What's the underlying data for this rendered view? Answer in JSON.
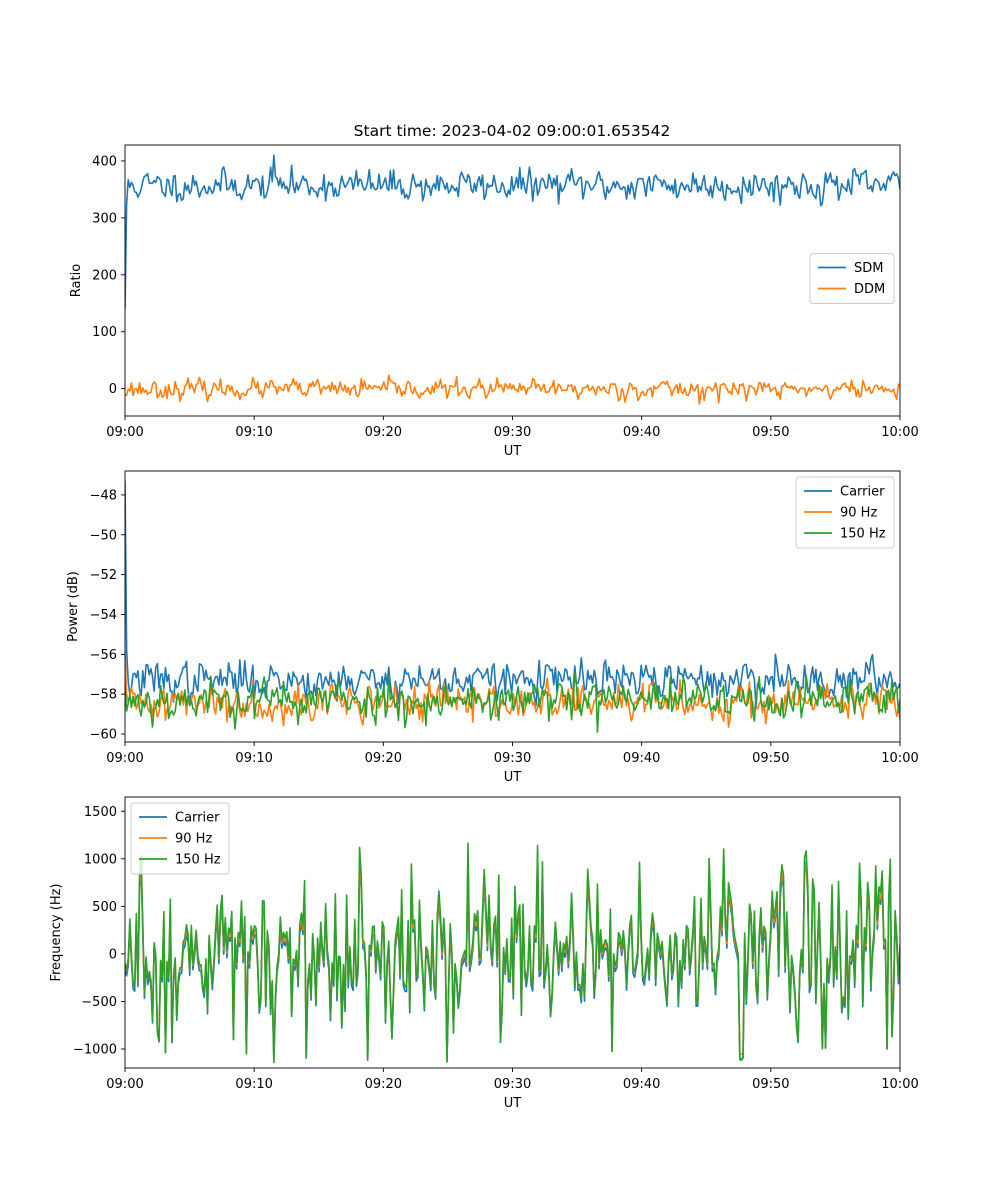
{
  "figure": {
    "title": "Start time: 2023-04-02 09:00:01.653542"
  },
  "colors": {
    "c0": "#1f77b4",
    "c1": "#ff7f0e",
    "c2": "#2ca02c"
  },
  "chart_data": [
    {
      "type": "line",
      "title": "Start time: 2023-04-02 09:00:01.653542",
      "xlabel": "UT",
      "ylabel": "Ratio",
      "xlim": [
        "09:00",
        "10:00"
      ],
      "xticks": [
        "09:00",
        "09:10",
        "09:20",
        "09:30",
        "09:40",
        "09:50",
        "10:00"
      ],
      "ylim": [
        -48,
        428
      ],
      "yticks": [
        0,
        100,
        200,
        300,
        400
      ],
      "yticklabels": [
        "0",
        "100",
        "200",
        "300",
        "400"
      ],
      "legend": "center-right",
      "series": [
        {
          "name": "SDM",
          "color": "#1f77b4",
          "start": 140,
          "mean": 357,
          "amp": 13,
          "seed": 11,
          "spikes": [
            [
              11.5,
              410
            ]
          ]
        },
        {
          "name": "DDM",
          "color": "#ff7f0e",
          "mean": -1,
          "amp": 8,
          "seed": 23,
          "spikes": [
            [
              44.5,
              -27
            ]
          ]
        }
      ]
    },
    {
      "type": "line",
      "title": "",
      "xlabel": "UT",
      "ylabel": "Power (dB)",
      "xlim": [
        "09:00",
        "10:00"
      ],
      "xticks": [
        "09:00",
        "09:10",
        "09:20",
        "09:30",
        "09:40",
        "09:50",
        "10:00"
      ],
      "ylim": [
        -60.4,
        -46.8
      ],
      "yticks": [
        -60,
        -58,
        -56,
        -54,
        -52,
        -50,
        -48
      ],
      "yticklabels": [
        "−60",
        "−58",
        "−56",
        "−54",
        "−52",
        "−50",
        "−48"
      ],
      "legend": "top-right",
      "series": [
        {
          "name": "Carrier",
          "color": "#1f77b4",
          "start": -47.3,
          "mean": -57.3,
          "amp": 0.45,
          "seed": 37,
          "spikes": [
            [
              50.3,
              -56.0
            ]
          ]
        },
        {
          "name": "90 Hz",
          "color": "#ff7f0e",
          "start": -55.8,
          "mean": -58.4,
          "amp": 0.45,
          "seed": 41,
          "spikes": []
        },
        {
          "name": "150 Hz",
          "color": "#2ca02c",
          "mean": -58.3,
          "amp": 0.5,
          "seed": 53,
          "spikes": [
            [
              36.6,
              -59.9
            ]
          ]
        }
      ]
    },
    {
      "type": "line",
      "title": "",
      "xlabel": "UT",
      "ylabel": "Frequency (Hz)",
      "xlim": [
        "09:00",
        "10:00"
      ],
      "xticks": [
        "09:00",
        "09:10",
        "09:20",
        "09:30",
        "09:40",
        "09:50",
        "10:00"
      ],
      "ylim": [
        -1200,
        1650
      ],
      "yticks": [
        -1000,
        -500,
        0,
        500,
        1000,
        1500
      ],
      "yticklabels": [
        "−1000",
        "−500",
        "0",
        "500",
        "1000",
        "1500"
      ],
      "legend": "top-left",
      "series": [
        {
          "name": "Carrier",
          "color": "#1f77b4",
          "offset": -50,
          "scale": 1.0,
          "seed": 71
        },
        {
          "name": "90 Hz",
          "color": "#ff7f0e",
          "offset": 0,
          "scale": 1.0,
          "seed": 71
        },
        {
          "name": "150 Hz",
          "color": "#2ca02c",
          "offset": 25,
          "scale": 1.08,
          "seed": 71
        }
      ]
    }
  ]
}
